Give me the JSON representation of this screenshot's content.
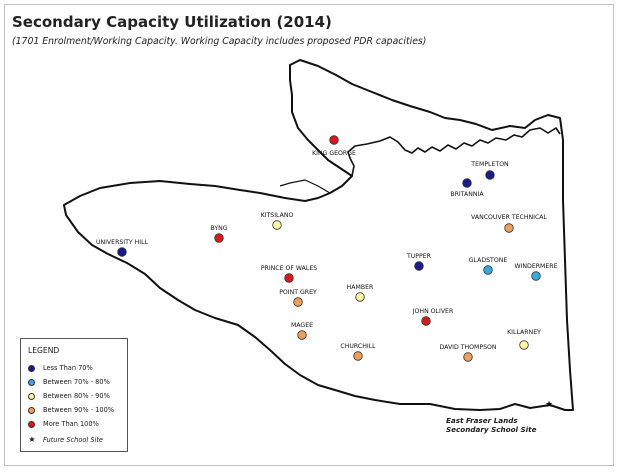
{
  "title": "Secondary Capacity Utilization (2014)",
  "subtitle": "(1701 Enrolment/Working Capacity. Working Capacity includes proposed PDR capacities)",
  "colors": {
    "less_than_70": "#1a1a8c",
    "between_70_80": "#39a9e0",
    "between_80_90": "#fbf7a0",
    "between_90_100": "#eea05a",
    "more_than_100": "#d7191c"
  },
  "legend": {
    "title": "LEGEND",
    "items": [
      {
        "label": "Less Than 70%",
        "category": "less_than_70"
      },
      {
        "label": "Between 70% - 80%",
        "category": "between_70_80"
      },
      {
        "label": "Between 80% - 90%",
        "category": "between_80_90"
      },
      {
        "label": "Between 90% - 100%",
        "category": "between_90_100"
      },
      {
        "label": "More Than 100%",
        "category": "more_than_100"
      }
    ],
    "future_site_icon": "star-icon",
    "future_site_label": "Future School Site"
  },
  "schools": [
    {
      "name": "KING GEORGE",
      "category": "more_than_100"
    },
    {
      "name": "TEMPLETON",
      "category": "less_than_70"
    },
    {
      "name": "BRITANNIA",
      "category": "less_than_70"
    },
    {
      "name": "VANCOUVER TECHNICAL",
      "category": "between_90_100"
    },
    {
      "name": "BYNG",
      "category": "more_than_100"
    },
    {
      "name": "KITSILANO",
      "category": "between_80_90"
    },
    {
      "name": "UNIVERSITY HILL",
      "category": "less_than_70"
    },
    {
      "name": "TUPPER",
      "category": "less_than_70"
    },
    {
      "name": "GLADSTONE",
      "category": "between_70_80"
    },
    {
      "name": "WINDERMERE",
      "category": "between_70_80"
    },
    {
      "name": "PRINCE OF WALES",
      "category": "more_than_100"
    },
    {
      "name": "POINT GREY",
      "category": "between_90_100"
    },
    {
      "name": "HAMBER",
      "category": "between_80_90"
    },
    {
      "name": "JOHN OLIVER",
      "category": "more_than_100"
    },
    {
      "name": "MAGEE",
      "category": "between_90_100"
    },
    {
      "name": "CHURCHILL",
      "category": "between_90_100"
    },
    {
      "name": "DAVID THOMPSON",
      "category": "between_90_100"
    },
    {
      "name": "KILLARNEY",
      "category": "between_80_90"
    }
  ],
  "future_site": {
    "line1": "East Fraser Lands",
    "line2": "Secondary School Site"
  }
}
